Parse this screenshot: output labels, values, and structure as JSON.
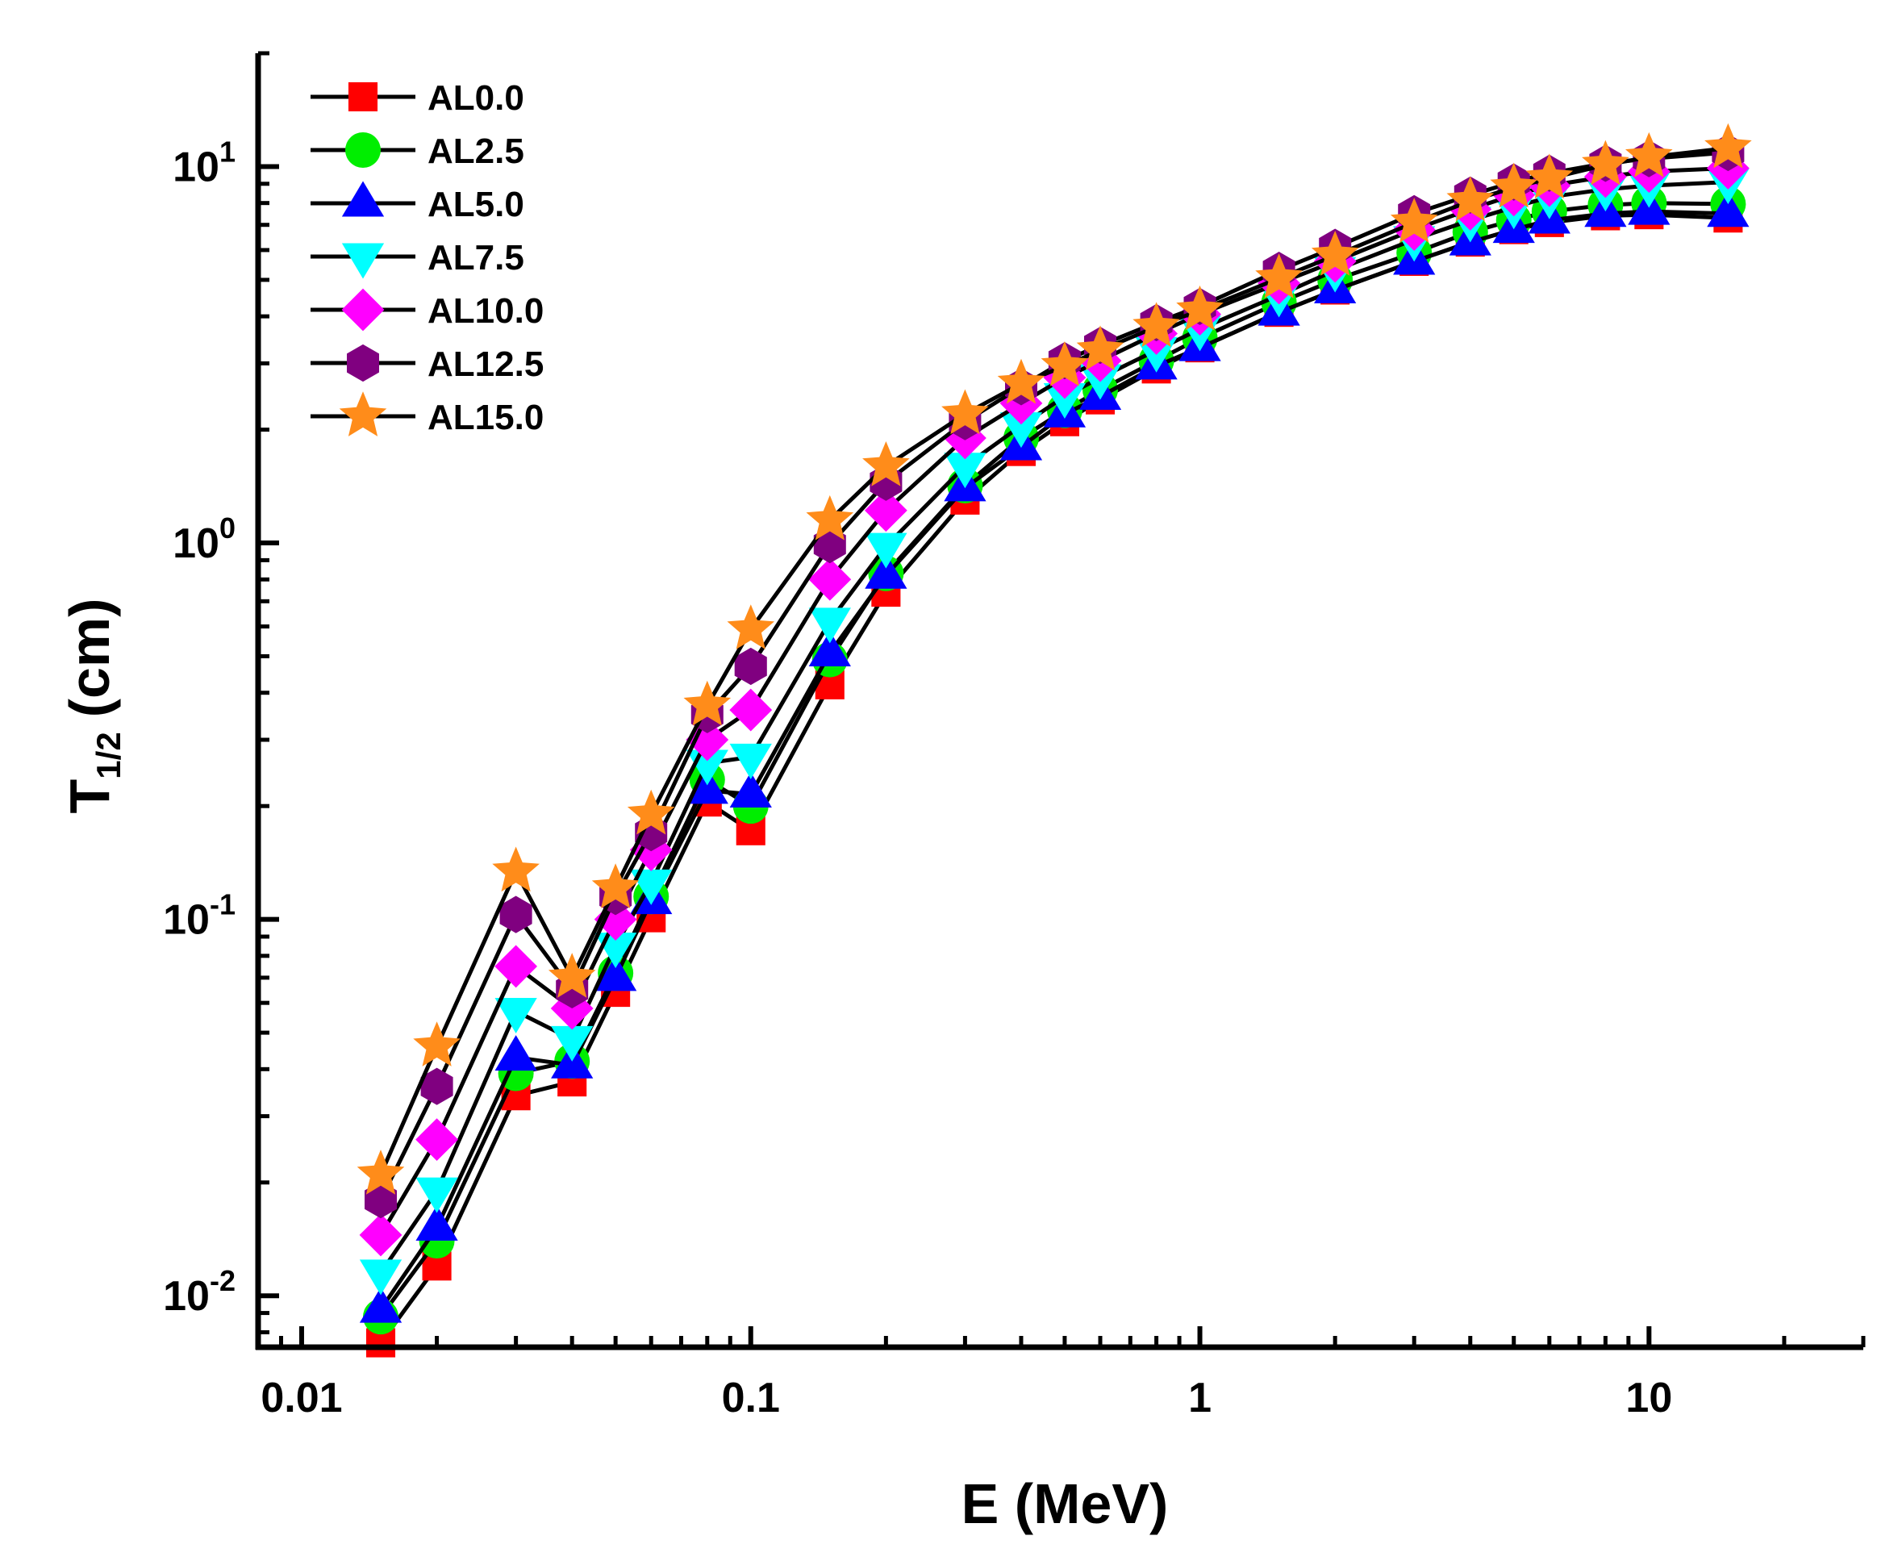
{
  "chart_data": {
    "type": "line",
    "title": "",
    "xlabel": "E (MeV)",
    "ylabel": "T",
    "ylabel_subscript": "1/2",
    "ylabel_unit": "(cm)",
    "xscale": "log",
    "yscale": "log",
    "xlim": [
      0.008,
      30
    ],
    "ylim": [
      0.0073,
      20
    ],
    "x_ticks": [
      {
        "value": 0.01,
        "label": "0.01"
      },
      {
        "value": 0.1,
        "label": "0.1"
      },
      {
        "value": 1,
        "label": "1"
      },
      {
        "value": 10,
        "label": "10"
      }
    ],
    "y_ticks": [
      {
        "value": 0.01,
        "base": "10",
        "exp": "-2"
      },
      {
        "value": 0.1,
        "base": "10",
        "exp": "-1"
      },
      {
        "value": 1,
        "base": "10",
        "exp": "0"
      },
      {
        "value": 10,
        "base": "10",
        "exp": "1"
      }
    ],
    "legend_position": "top-left",
    "grid": false,
    "x": [
      0.015,
      0.02,
      0.03,
      0.04,
      0.05,
      0.06,
      0.08,
      0.1,
      0.15,
      0.2,
      0.3,
      0.4,
      0.5,
      0.6,
      0.8,
      1,
      1.5,
      2,
      3,
      4,
      5,
      6,
      8,
      10,
      15
    ],
    "series": [
      {
        "name": "AL0.0",
        "marker": "square",
        "color": "#ff0000",
        "values": [
          0.0075,
          0.012,
          0.034,
          0.037,
          0.064,
          0.101,
          0.205,
          0.172,
          0.42,
          0.74,
          1.3,
          1.75,
          2.1,
          2.4,
          2.9,
          3.3,
          4.1,
          4.7,
          5.6,
          6.3,
          6.8,
          7.1,
          7.4,
          7.45,
          7.3
        ]
      },
      {
        "name": "AL2.5",
        "marker": "circle",
        "color": "#00ee00",
        "values": [
          0.0088,
          0.014,
          0.039,
          0.042,
          0.072,
          0.115,
          0.235,
          0.2,
          0.49,
          0.83,
          1.42,
          1.9,
          2.25,
          2.55,
          3.05,
          3.5,
          4.35,
          5.0,
          5.9,
          6.7,
          7.2,
          7.6,
          7.9,
          8.0,
          7.95
        ]
      },
      {
        "name": "AL5.0",
        "marker": "triangle-up",
        "color": "#0000ff",
        "values": [
          0.0092,
          0.0152,
          0.043,
          0.041,
          0.07,
          0.112,
          0.22,
          0.215,
          0.51,
          0.82,
          1.4,
          1.8,
          2.2,
          2.45,
          2.95,
          3.3,
          4.1,
          4.7,
          5.6,
          6.3,
          6.8,
          7.2,
          7.5,
          7.6,
          7.5
        ]
      },
      {
        "name": "AL7.5",
        "marker": "triangle-down",
        "color": "#00ffff",
        "values": [
          0.0115,
          0.019,
          0.057,
          0.048,
          0.085,
          0.125,
          0.26,
          0.27,
          0.62,
          0.98,
          1.6,
          2.05,
          2.45,
          2.75,
          3.25,
          3.7,
          4.55,
          5.3,
          6.4,
          7.2,
          7.8,
          8.3,
          8.7,
          8.9,
          9.1
        ]
      },
      {
        "name": "AL10.0",
        "marker": "diamond",
        "color": "#ff00ff",
        "values": [
          0.0145,
          0.026,
          0.075,
          0.058,
          0.1,
          0.153,
          0.3,
          0.36,
          0.8,
          1.22,
          1.9,
          2.35,
          2.75,
          3.05,
          3.6,
          4.05,
          4.9,
          5.6,
          6.8,
          7.7,
          8.4,
          8.9,
          9.4,
          9.7,
          9.9
        ]
      },
      {
        "name": "AL12.5",
        "marker": "hexagon",
        "color": "#800080",
        "values": [
          0.018,
          0.036,
          0.103,
          0.065,
          0.115,
          0.17,
          0.35,
          0.47,
          0.99,
          1.45,
          2.1,
          2.6,
          3.05,
          3.35,
          3.85,
          4.25,
          5.3,
          6.1,
          7.5,
          8.4,
          9.1,
          9.6,
          10.2,
          10.5,
          10.9
        ]
      },
      {
        "name": "AL15.0",
        "marker": "star",
        "color": "#ff8c1a",
        "values": [
          0.021,
          0.046,
          0.134,
          0.07,
          0.121,
          0.19,
          0.37,
          0.59,
          1.15,
          1.6,
          2.2,
          2.65,
          2.95,
          3.25,
          3.75,
          4.15,
          5.05,
          5.8,
          7.1,
          8.1,
          8.8,
          9.3,
          10.1,
          10.6,
          11.2
        ]
      }
    ]
  }
}
